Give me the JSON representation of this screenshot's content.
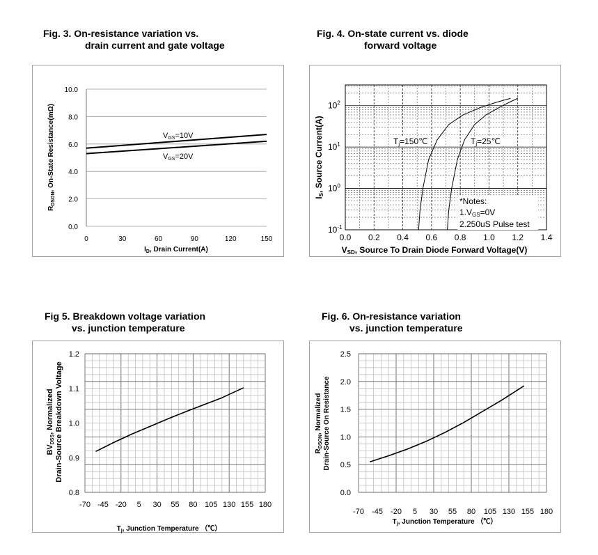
{
  "figures": [
    {
      "title_lines": [
        "Fig. 3. On-resistance variation vs.",
        "drain current and gate voltage"
      ],
      "chart_data": {
        "type": "line",
        "title": "Fig. 3. On-resistance variation vs. drain current and gate voltage",
        "xlabel": "I_D, Drain Current(A)",
        "ylabel": "R_DSON, On-State Resistance(mΩ)",
        "xlim": [
          0,
          150
        ],
        "ylim": [
          0,
          10
        ],
        "x_ticks": [
          "0",
          "30",
          "60",
          "90",
          "120",
          "150"
        ],
        "y_ticks": [
          "0.0",
          "2.0",
          "4.0",
          "6.0",
          "8.0",
          "10.0"
        ],
        "series": [
          {
            "name": "VGS=10V",
            "x": [
              0,
              150
            ],
            "y": [
              5.7,
              6.7
            ]
          },
          {
            "name": "VGS=20V",
            "x": [
              0,
              150
            ],
            "y": [
              5.3,
              6.2
            ]
          }
        ]
      }
    },
    {
      "title_lines": [
        "Fig. 4. On-state current vs. diode",
        "forward voltage"
      ],
      "chart_data": {
        "type": "line",
        "title": "Fig. 4. On-state current vs. diode forward voltage",
        "xlabel": "VSD, Source To Drain Diode Forward Voltage(V)",
        "ylabel": "IS, Source Current(A)",
        "xlim": [
          0,
          1.4
        ],
        "ylim_log10": [
          -1,
          2.5
        ],
        "x_ticks": [
          "0.0",
          "0.2",
          "0.4",
          "0.6",
          "0.8",
          "1.0",
          "1.2",
          "1.4"
        ],
        "y_ticks_exp": [
          "-1",
          "0",
          "1",
          "2"
        ],
        "series": [
          {
            "name": "Tj=150℃",
            "x": [
              0.51,
              0.52,
              0.54,
              0.58,
              0.64,
              0.72,
              0.82,
              0.94,
              1.05,
              1.15
            ],
            "y": [
              0.1,
              0.3,
              1,
              5,
              15,
              35,
              60,
              90,
              120,
              150
            ]
          },
          {
            "name": "Tj=25℃",
            "x": [
              0.71,
              0.72,
              0.74,
              0.78,
              0.83,
              0.9,
              0.98,
              1.07,
              1.14,
              1.2
            ],
            "y": [
              0.1,
              0.3,
              1,
              5,
              15,
              35,
              60,
              90,
              120,
              150
            ]
          }
        ],
        "annotations": {
          "note_title": "*Notes:",
          "note_1": "1.V",
          "note_1_sub": "GS",
          "note_1_tail": "=0V",
          "note_2": "2.250uS Pulse test"
        }
      }
    },
    {
      "title_lines": [
        "Fig 5. Breakdown voltage variation",
        "vs. junction temperature"
      ],
      "chart_data": {
        "type": "line",
        "title": "Fig 5. Breakdown voltage variation vs. junction temperature",
        "xlabel": "Tj, Junction Temperature (℃)",
        "ylabel": "BVDSS, Normalized Drain-Source Breakdown Voltage",
        "xlim": [
          -70,
          180
        ],
        "ylim": [
          0.8,
          1.2
        ],
        "x_ticks": [
          "-70",
          "-45",
          "-20",
          "5",
          "30",
          "55",
          "80",
          "105",
          "130",
          "155",
          "180"
        ],
        "y_ticks": [
          "0.8",
          "0.9",
          "1.0",
          "1.1",
          "1.2"
        ],
        "series": [
          {
            "name": "BVDSS",
            "x": [
              -55,
              -30,
              -5,
              20,
              45,
              70,
              95,
              120,
              150
            ],
            "y": [
              0.918,
              0.944,
              0.968,
              0.99,
              1.012,
              1.033,
              1.053,
              1.073,
              1.102
            ]
          }
        ]
      }
    },
    {
      "title_lines": [
        "Fig. 6. On-resistance variation",
        "vs. junction temperature"
      ],
      "chart_data": {
        "type": "line",
        "title": "Fig. 6. On-resistance variation vs. junction temperature",
        "xlabel": "Tj, Junction Temperature (℃)",
        "ylabel": "RDSON, Normalized Drain-Source On Resistance",
        "xlim": [
          -70,
          180
        ],
        "ylim": [
          0,
          2.5
        ],
        "x_ticks": [
          "-70",
          "-45",
          "-20",
          "5",
          "30",
          "55",
          "80",
          "105",
          "130",
          "155",
          "180"
        ],
        "y_ticks": [
          "0.0",
          "0.5",
          "1.0",
          "1.5",
          "2.0",
          "2.5"
        ],
        "series": [
          {
            "name": "RDSON",
            "x": [
              -55,
              -30,
              -5,
              20,
              45,
              70,
              95,
              120,
              150
            ],
            "y": [
              0.55,
              0.66,
              0.78,
              0.92,
              1.08,
              1.26,
              1.46,
              1.66,
              1.92
            ]
          }
        ]
      }
    }
  ]
}
